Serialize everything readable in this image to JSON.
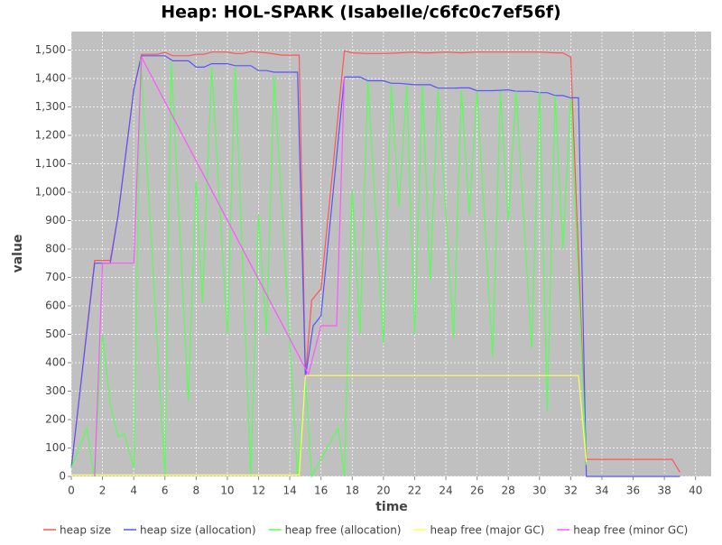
{
  "chart_data": {
    "type": "line",
    "title": "Heap: HOL-SPARK (Isabelle/c6fc0c7ef56f)",
    "x_label": "time",
    "y_label": "value",
    "xlim": [
      0,
      41
    ],
    "xticks": [
      0,
      2,
      4,
      6,
      8,
      10,
      12,
      14,
      16,
      18,
      20,
      22,
      24,
      26,
      28,
      30,
      32,
      34,
      36,
      38,
      40
    ],
    "ylim": [
      0,
      1565
    ],
    "yticks": [
      0,
      100,
      200,
      300,
      400,
      500,
      600,
      700,
      800,
      900,
      {
        "value": 1000,
        "label": "1,000"
      },
      {
        "value": 1100,
        "label": "1,100"
      },
      {
        "value": 1200,
        "label": "1,200"
      },
      {
        "value": 1300,
        "label": "1,300"
      },
      {
        "value": 1400,
        "label": "1,400"
      },
      {
        "value": 1500,
        "label": "1,500"
      }
    ],
    "grid": true,
    "plot_background": "#c0c0c0",
    "legend": "bottom",
    "series": [
      {
        "name": "heap size",
        "color": "#ff5555",
        "x": [
          0,
          1.5,
          2.5,
          3,
          4,
          4.5,
          5.5,
          6,
          6.5,
          7.5,
          8,
          8.5,
          9,
          10,
          10.5,
          11,
          11.5,
          12.5,
          13.5,
          14.6,
          15,
          15.4,
          16,
          17.5,
          18,
          19,
          20,
          21,
          22,
          22.5,
          23,
          24,
          25,
          26,
          30,
          31,
          31.5,
          32,
          33,
          38.5,
          39
        ],
        "values": [
          30,
          760,
          760,
          920,
          1360,
          1485,
          1485,
          1492,
          1480,
          1480,
          1485,
          1485,
          1493,
          1493,
          1488,
          1488,
          1495,
          1490,
          1482,
          1482,
          350,
          620,
          660,
          1497,
          1490,
          1488,
          1488,
          1490,
          1493,
          1490,
          1490,
          1493,
          1490,
          1493,
          1493,
          1490,
          1490,
          1475,
          60,
          60,
          15
        ]
      },
      {
        "name": "heap size (allocation)",
        "color": "#5555ff",
        "x": [
          0,
          1.5,
          2.5,
          3,
          4,
          4.5,
          6,
          6.5,
          7.5,
          8,
          8.5,
          9,
          10,
          10.5,
          11.5,
          12,
          12.5,
          13,
          14.5,
          15,
          15.5,
          16,
          17.5,
          18.5,
          19,
          20,
          20.5,
          21,
          22,
          23,
          23.5,
          24.5,
          25,
          25.5,
          26,
          27,
          28,
          28.5,
          29.5,
          30,
          30.5,
          31,
          31.5,
          32,
          32.5,
          33,
          39
        ],
        "values": [
          30,
          750,
          750,
          920,
          1360,
          1480,
          1480,
          1462,
          1462,
          1440,
          1440,
          1452,
          1452,
          1445,
          1445,
          1428,
          1428,
          1422,
          1422,
          350,
          530,
          565,
          1405,
          1405,
          1392,
          1392,
          1383,
          1383,
          1378,
          1378,
          1366,
          1366,
          1367,
          1367,
          1357,
          1357,
          1360,
          1355,
          1355,
          1350,
          1350,
          1340,
          1340,
          1332,
          1332,
          0,
          0
        ]
      },
      {
        "name": "heap free (allocation)",
        "color": "#55ff55",
        "x": [
          0,
          1,
          1.45,
          2,
          2.5,
          3,
          3.4,
          4,
          4.45,
          6,
          6.4,
          7.5,
          8,
          8.4,
          9,
          10,
          10.5,
          11.5,
          12,
          12.5,
          13,
          14.5,
          15,
          15.4,
          17.1,
          17.5,
          18,
          18.5,
          19,
          20,
          20.5,
          21,
          21.5,
          22,
          22.5,
          23,
          23.5,
          24.5,
          25,
          25.5,
          26,
          27,
          27.5,
          28,
          28.5,
          29.5,
          30,
          30.5,
          31,
          31.5,
          32,
          33
        ],
        "values": [
          30,
          170,
          0,
          500,
          250,
          140,
          150,
          30,
          1470,
          0,
          1460,
          265,
          1040,
          610,
          1440,
          500,
          1440,
          0,
          920,
          500,
          1410,
          0,
          340,
          0,
          170,
          0,
          1010,
          500,
          1390,
          470,
          1375,
          950,
          1375,
          500,
          1375,
          690,
          1360,
          485,
          1360,
          920,
          1355,
          420,
          1355,
          900,
          1355,
          450,
          1355,
          230,
          1340,
          800,
          1330,
          40
        ]
      },
      {
        "name": "heap free (major GC)",
        "color": "#ffff55",
        "x": [
          0,
          14.6,
          15,
          32.5,
          33
        ],
        "values": [
          5,
          5,
          355,
          355,
          50
        ]
      },
      {
        "name": "heap free (minor GC)",
        "color": "#ff55ff",
        "x": [
          1.5,
          2,
          4,
          4.5,
          15.2,
          16,
          17,
          17.5
        ],
        "values": [
          0,
          750,
          750,
          1475,
          360,
          530,
          530,
          1405
        ]
      }
    ]
  }
}
